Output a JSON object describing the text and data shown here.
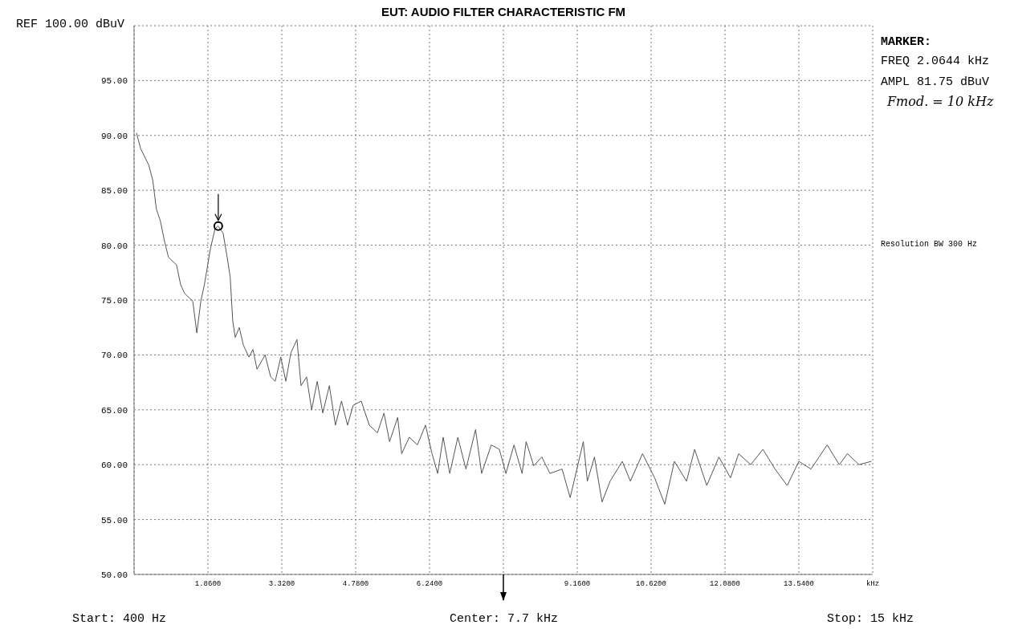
{
  "chart_data": {
    "type": "line",
    "title": "EUT: AUDIO FILTER CHARACTERISTIC FM",
    "annotations": [
      "REF 100.00 dBuV",
      "MARKER:",
      "FREQ 2.0644 kHz",
      "AMPL 81.75 dBuV",
      "Fmod. = 10 kHz",
      "Resolution BW 300 Hz",
      "Start: 400 Hz",
      "Center: 7.7 kHz",
      "Stop: 15 kHz"
    ],
    "xlim": [
      0.4,
      15
    ],
    "xticks": [
      {
        "value": 0.4,
        "label": null
      },
      {
        "value": 1.86,
        "label": "1.8600"
      },
      {
        "value": 3.32,
        "label": "3.3200"
      },
      {
        "value": 4.78,
        "label": "4.7800"
      },
      {
        "value": 6.24,
        "label": "6.2400"
      },
      {
        "value": 7.7,
        "label": null
      },
      {
        "value": 9.16,
        "label": "9.1600"
      },
      {
        "value": 10.62,
        "label": "10.6200"
      },
      {
        "value": 12.08,
        "label": "12.0800"
      },
      {
        "value": 13.54,
        "label": "13.5400"
      },
      {
        "value": 15,
        "label": "kHz"
      }
    ],
    "ylim": [
      50,
      100
    ],
    "yticks": [
      {
        "value": 50,
        "label": "50.00"
      },
      {
        "value": 55,
        "label": "55.00"
      },
      {
        "value": 60,
        "label": "60.00"
      },
      {
        "value": 65,
        "label": "65.00"
      },
      {
        "value": 70,
        "label": "70.00"
      },
      {
        "value": 75,
        "label": "75.00"
      },
      {
        "value": 80,
        "label": "80.00"
      },
      {
        "value": 85,
        "label": "85.00"
      },
      {
        "value": 90,
        "label": "90.00"
      },
      {
        "value": 95,
        "label": "95.00"
      },
      {
        "value": 100,
        "label": null
      }
    ],
    "grid": true,
    "line_style": "solid",
    "series": [
      {
        "type": "line",
        "color": "#555555",
        "marker": "none",
        "x": [
          0.45,
          0.53,
          0.69,
          0.77,
          0.84,
          0.92,
          1.0,
          1.08,
          1.24,
          1.32,
          1.4,
          1.56,
          1.64,
          1.72,
          1.79,
          1.91,
          2.0,
          2.06,
          2.16,
          2.24,
          2.3,
          2.35,
          2.4,
          2.48,
          2.56,
          2.67,
          2.75,
          2.83,
          2.99,
          3.1,
          3.19,
          3.3,
          3.4,
          3.5,
          3.62,
          3.7,
          3.81,
          3.91,
          4.02,
          4.13,
          4.26,
          4.38,
          4.5,
          4.62,
          4.73,
          4.89,
          5.05,
          5.21,
          5.34,
          5.45,
          5.61,
          5.69,
          5.84,
          6.0,
          6.16,
          6.29,
          6.4,
          6.51,
          6.64,
          6.8,
          6.96,
          7.15,
          7.27,
          7.46,
          7.62,
          7.75,
          7.91,
          8.07,
          8.15,
          8.3,
          8.46,
          8.62,
          8.86,
          9.02,
          9.28,
          9.36,
          9.5,
          9.65,
          9.81,
          10.05,
          10.21,
          10.45,
          10.69,
          10.89,
          11.08,
          11.32,
          11.48,
          11.72,
          11.96,
          12.19,
          12.35,
          12.59,
          12.83,
          13.07,
          13.31,
          13.54,
          13.78,
          13.94,
          14.1,
          14.34,
          14.5,
          14.73,
          14.97
        ],
        "values": [
          90.2,
          88.8,
          87.3,
          85.9,
          83.3,
          82.2,
          80.4,
          78.9,
          78.2,
          76.4,
          75.6,
          74.9,
          72.0,
          74.9,
          76.4,
          79.7,
          81.5,
          81.75,
          81.1,
          78.9,
          77.1,
          73.1,
          71.6,
          72.5,
          70.9,
          69.8,
          70.5,
          68.7,
          70.0,
          68.0,
          67.6,
          69.8,
          67.6,
          70.2,
          71.4,
          67.2,
          68.0,
          65.0,
          67.6,
          64.7,
          67.2,
          63.6,
          65.8,
          63.6,
          65.4,
          65.8,
          63.6,
          62.9,
          64.7,
          62.1,
          64.3,
          61.0,
          62.5,
          61.8,
          63.6,
          61.0,
          59.2,
          62.5,
          59.2,
          62.5,
          59.6,
          63.2,
          59.2,
          61.8,
          61.4,
          59.2,
          61.8,
          59.2,
          62.1,
          59.9,
          60.7,
          59.2,
          59.6,
          57.0,
          62.1,
          58.5,
          60.7,
          56.6,
          58.5,
          60.3,
          58.5,
          61.0,
          58.8,
          56.4,
          60.3,
          58.5,
          61.4,
          58.1,
          60.7,
          58.8,
          61.0,
          60.0,
          61.4,
          59.6,
          58.1,
          60.3,
          59.6,
          60.7,
          61.8,
          60.0,
          61.0,
          60.0,
          60.3
        ]
      },
      {
        "type": "scatter",
        "color": "#000000",
        "marker": "circle",
        "x": [
          2.0644
        ],
        "values": [
          81.75
        ]
      }
    ]
  }
}
